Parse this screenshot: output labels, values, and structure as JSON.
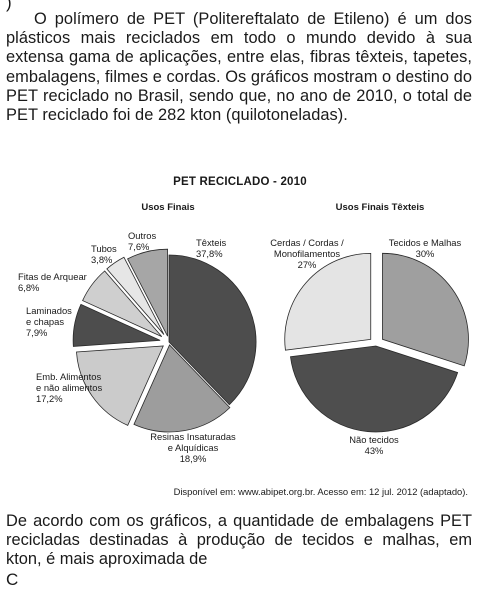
{
  "top_fragment": ")",
  "intro_text": "O polímero de PET (Politereftalato de Etileno) é um dos plásticos mais reciclados em todo o mundo devido à sua extensa gama de aplicações, entre elas, fibras têxteis, tapetes, embalagens, filmes e cordas. Os gráficos mostram o destino do PET reciclado no Brasil, sendo que, no ano de 2010, o total de PET reciclado foi de 282 kton (quilotoneladas).",
  "question_text": "De acordo com os gráficos, a quantidade de embalagens PET recicladas destinadas à produção de tecidos e malhas, em kton, é mais aproximada de",
  "bottom_fragment": "C",
  "source_text": "Disponível em: www.abipet.org.br. Acesso em: 12 jul. 2012 (adaptado).",
  "chart_data": [
    {
      "type": "pie",
      "title": "PET RECICLADO - 2010",
      "subtitle": "Usos Finais",
      "slices": [
        {
          "name": "Têxteis",
          "value": 37.8,
          "label_lines": [
            "Têxteis",
            "37,8%"
          ],
          "color": "#4d4d4d"
        },
        {
          "name": "Resinas Insaturadas e Alquídicas",
          "value": 18.9,
          "label_lines": [
            "Resinas Insaturadas",
            "e Alquídicas",
            "18,9%"
          ],
          "color": "#9d9d9d"
        },
        {
          "name": "Emb. Alimentos e não alimentos",
          "value": 17.2,
          "label_lines": [
            "Emb. Alimentos",
            "e não alimentos",
            "17,2%"
          ],
          "color": "#cbcbcb"
        },
        {
          "name": "Laminados e chapas",
          "value": 7.9,
          "label_lines": [
            "Laminados",
            "e chapas",
            "7,9%"
          ],
          "color": "#4d4d4d"
        },
        {
          "name": "Fitas de Arquear",
          "value": 6.8,
          "label_lines": [
            "Fitas de Arquear",
            "6,8%"
          ],
          "color": "#cfcfcf"
        },
        {
          "name": "Tubos",
          "value": 3.8,
          "label_lines": [
            "Tubos",
            "3,8%"
          ],
          "color": "#e6e6e6"
        },
        {
          "name": "Outros",
          "value": 7.6,
          "label_lines": [
            "Outros",
            "7,6%"
          ],
          "color": "#a6a6a6"
        }
      ]
    },
    {
      "type": "pie",
      "subtitle": "Usos Finais Têxteis",
      "slices": [
        {
          "name": "Tecidos e Malhas",
          "value": 30,
          "label_lines": [
            "Tecidos e Malhas",
            "30%"
          ],
          "color": "#9f9f9f"
        },
        {
          "name": "Não tecidos",
          "value": 43,
          "label_lines": [
            "Não tecidos",
            "43%"
          ],
          "color": "#4e4e4e"
        },
        {
          "name": "Cerdas / Cordas / Monofilamentos",
          "value": 27,
          "label_lines": [
            "Cerdas / Cordas /",
            "Monofilamentos",
            "27%"
          ],
          "color": "#e4e4e4"
        }
      ]
    }
  ]
}
